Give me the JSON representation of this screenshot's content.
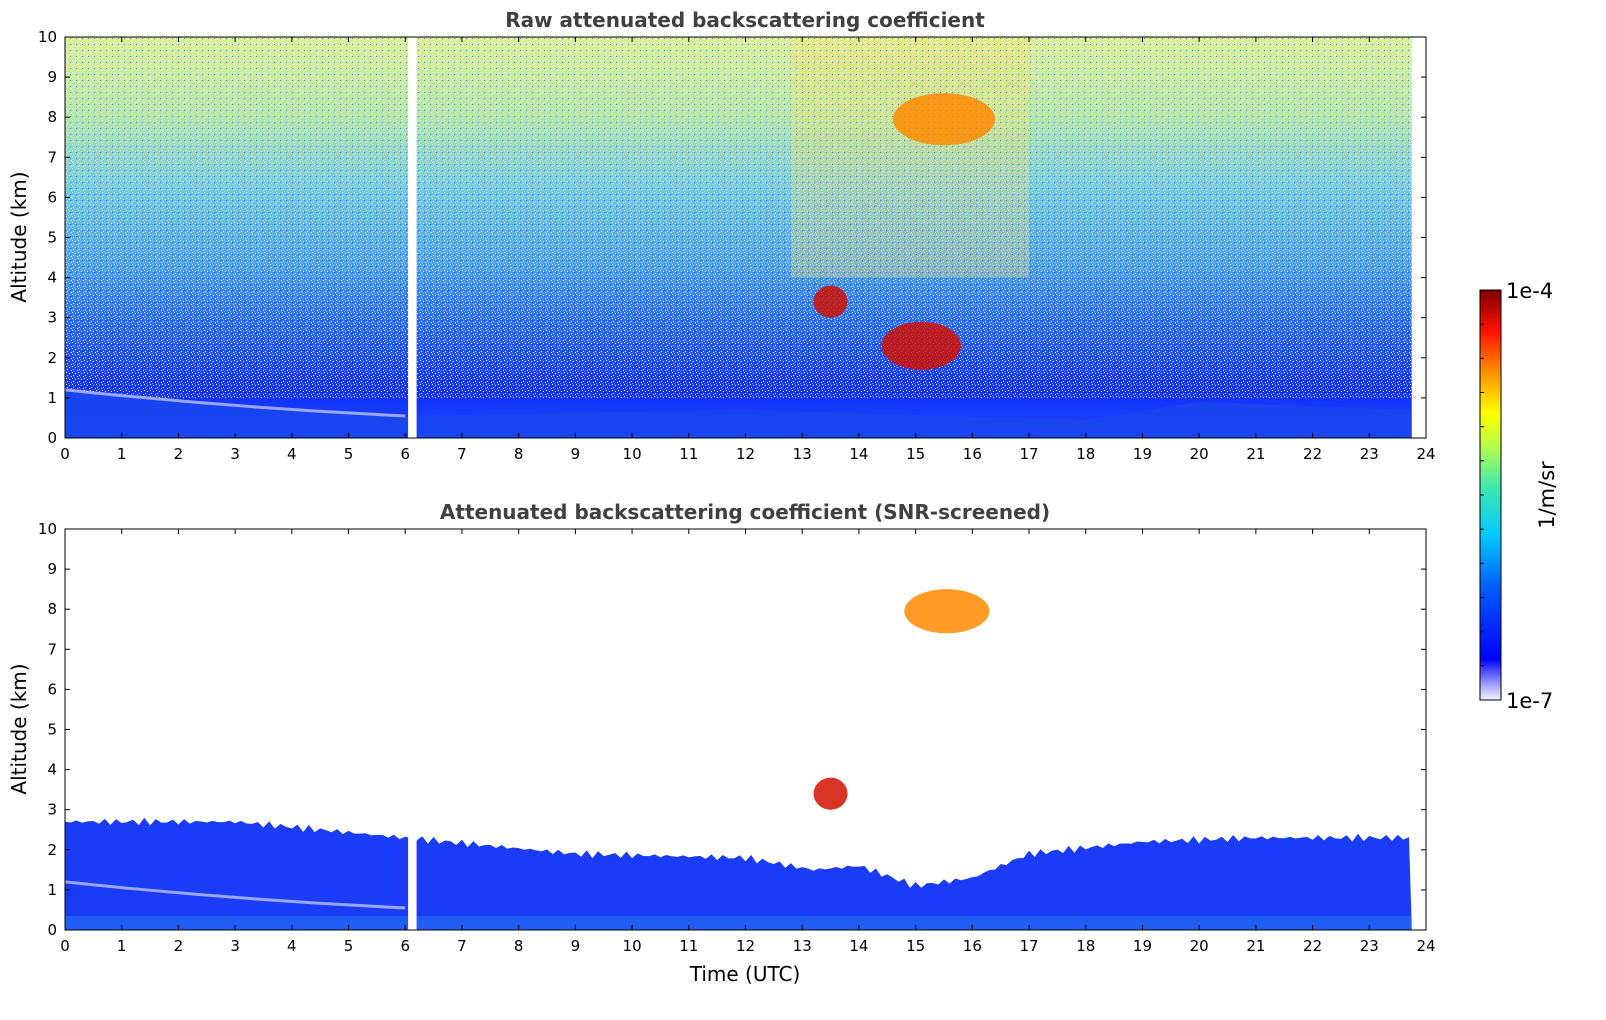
{
  "chart_data": [
    {
      "type": "heatmap",
      "title": "Raw attenuated backscattering coefficient",
      "xlabel": "",
      "ylabel": "Altitude (km)",
      "xlim": [
        0,
        24
      ],
      "ylim": [
        0,
        10
      ],
      "xticks": [
        "0",
        "1",
        "2",
        "3",
        "4",
        "5",
        "6",
        "7",
        "8",
        "9",
        "10",
        "11",
        "12",
        "13",
        "14",
        "15",
        "16",
        "17",
        "18",
        "19",
        "20",
        "21",
        "22",
        "23",
        "24"
      ],
      "yticks": [
        "0",
        "1",
        "2",
        "3",
        "4",
        "5",
        "6",
        "7",
        "8",
        "9",
        "10"
      ],
      "data_gap_utc": [
        6.05,
        6.2
      ],
      "data_end_utc": 23.75,
      "aerosol_layer_top_km": [
        [
          0,
          1.2
        ],
        [
          3,
          0.8
        ],
        [
          6,
          0.55
        ],
        [
          12,
          0.7
        ],
        [
          18,
          0.45
        ],
        [
          20,
          0.9
        ],
        [
          23.75,
          0.7
        ]
      ],
      "cloud_features": [
        {
          "time_utc": [
            14.6,
            16.4
          ],
          "altitude_km": [
            7.3,
            8.6
          ],
          "level": "high"
        },
        {
          "time_utc": [
            13.2,
            13.8
          ],
          "altitude_km": [
            3.0,
            3.8
          ],
          "level": "very high"
        },
        {
          "time_utc": [
            14.4,
            15.8
          ],
          "altitude_km": [
            1.7,
            2.9
          ],
          "level": "very high"
        }
      ]
    },
    {
      "type": "heatmap",
      "title": "Attenuated backscattering coefficient (SNR-screened)",
      "xlabel": "Time (UTC)",
      "ylabel": "Altitude (km)",
      "xlim": [
        0,
        24
      ],
      "ylim": [
        0,
        10
      ],
      "xticks": [
        "0",
        "1",
        "2",
        "3",
        "4",
        "5",
        "6",
        "7",
        "8",
        "9",
        "10",
        "11",
        "12",
        "13",
        "14",
        "15",
        "16",
        "17",
        "18",
        "19",
        "20",
        "21",
        "22",
        "23",
        "24"
      ],
      "yticks": [
        "0",
        "1",
        "2",
        "3",
        "4",
        "5",
        "6",
        "7",
        "8",
        "9",
        "10"
      ],
      "data_gap_utc": [
        6.05,
        6.2
      ],
      "data_end_utc": 23.75,
      "screened_signal_top_km": [
        [
          0,
          2.7
        ],
        [
          3,
          2.7
        ],
        [
          6,
          2.3
        ],
        [
          9,
          1.9
        ],
        [
          12,
          1.8
        ],
        [
          13.2,
          1.5
        ],
        [
          14,
          1.6
        ],
        [
          15,
          1.1
        ],
        [
          16,
          1.3
        ],
        [
          17,
          1.9
        ],
        [
          19,
          2.2
        ],
        [
          21,
          2.3
        ],
        [
          23.75,
          2.3
        ]
      ],
      "cloud_features": [
        {
          "time_utc": [
            14.8,
            16.3
          ],
          "altitude_km": [
            7.4,
            8.5
          ],
          "level": "high"
        },
        {
          "time_utc": [
            13.2,
            13.8
          ],
          "altitude_km": [
            3.0,
            3.8
          ],
          "level": "very high"
        }
      ]
    }
  ],
  "colorbar": {
    "label": "1/m/sr",
    "max_label": "1e-4",
    "min_label": "1e-7",
    "scale": "log",
    "colormap": "jet",
    "colors": [
      "#ffffff",
      "#0000ff",
      "#00a0ff",
      "#40e0d0",
      "#c8ff40",
      "#ffff00",
      "#ff8000",
      "#ff0000",
      "#7f0000"
    ]
  }
}
